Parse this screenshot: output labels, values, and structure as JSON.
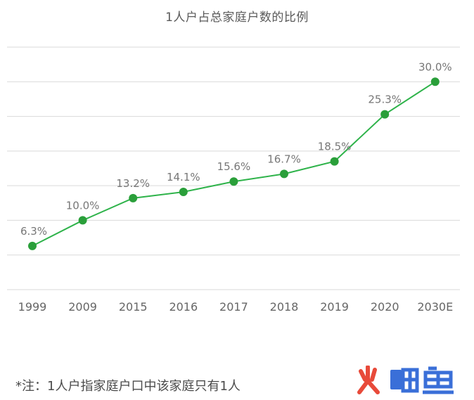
{
  "title": "1人户占总家庭户数的比例",
  "footnote": "*注：1人户指家庭户口中该家庭只有1人",
  "watermark_text": "火鲤鱼",
  "colors": {
    "line": "#2eb34a",
    "point": "#2a9f3a",
    "grid": "#d9d9d9",
    "tick_text": "#666666",
    "label_text": "#777777",
    "watermark_red": "#e84a3a",
    "watermark_blue": "#3a6fd8"
  },
  "chart_data": {
    "type": "line",
    "title": "1人户占总家庭户数的比例",
    "xlabel": "",
    "ylabel": "",
    "categories": [
      "1999",
      "2009",
      "2015",
      "2016",
      "2017",
      "2018",
      "2019",
      "2020",
      "2030E"
    ],
    "values": [
      6.3,
      10.0,
      13.2,
      14.1,
      15.6,
      16.7,
      18.5,
      25.3,
      30.0
    ],
    "data_labels": [
      "6.3%",
      "10.0%",
      "13.2%",
      "14.1%",
      "15.6%",
      "16.7%",
      "18.5%",
      "25.3%",
      "30.0%"
    ],
    "ylim": [
      0,
      35
    ],
    "grid": true,
    "legend": "none"
  }
}
